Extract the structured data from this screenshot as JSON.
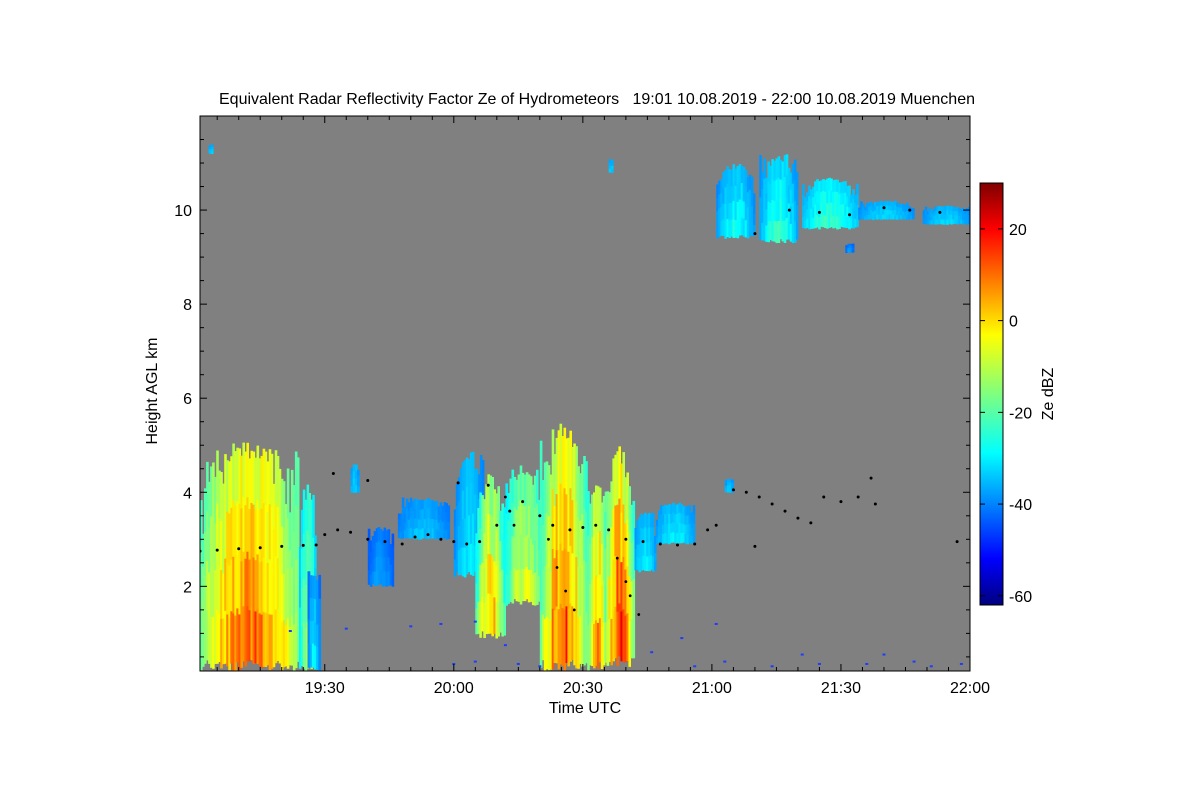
{
  "chart_data": {
    "type": "heatmap",
    "title": "Equivalent Radar Reflectivity Factor Ze of Hydrometeors   19:01 10.08.2019 - 22:00 10.08.2019 Muenchen",
    "xlabel": "Time UTC",
    "ylabel": "Height AGL km",
    "x_range_minutes": [
      1141,
      1320
    ],
    "x_ticks": [
      {
        "minute": 1170,
        "label": "19:30"
      },
      {
        "minute": 1200,
        "label": "20:00"
      },
      {
        "minute": 1230,
        "label": "20:30"
      },
      {
        "minute": 1260,
        "label": "21:00"
      },
      {
        "minute": 1290,
        "label": "21:30"
      },
      {
        "minute": 1320,
        "label": "22:00"
      }
    ],
    "ylim": [
      0.2,
      12.0
    ],
    "y_ticks": [
      2,
      4,
      6,
      8,
      10
    ],
    "background_color": "#808080",
    "colorbar": {
      "label": "Ze dBZ",
      "range": [
        -62,
        30
      ],
      "ticks": [
        -60,
        -40,
        -20,
        0,
        20
      ],
      "colormap": "jet"
    },
    "echo_regions": [
      {
        "t0": 1141,
        "t1": 1164,
        "base": 0.2,
        "top": 5.1,
        "zmax": 12,
        "zmin": -30
      },
      {
        "t0": 1164,
        "t1": 1168,
        "base": 0.2,
        "top": 4.2,
        "zmax": -10,
        "zmin": -40
      },
      {
        "t0": 1166,
        "t1": 1169,
        "base": 0.2,
        "top": 2.4,
        "zmax": -28,
        "zmin": -45
      },
      {
        "t0": 1176,
        "t1": 1178,
        "base": 4.0,
        "top": 4.6,
        "zmax": -30,
        "zmin": -40
      },
      {
        "t0": 1180,
        "t1": 1186,
        "base": 2.0,
        "top": 3.3,
        "zmax": -35,
        "zmin": -45
      },
      {
        "t0": 1187,
        "t1": 1199,
        "base": 3.0,
        "top": 3.9,
        "zmax": -32,
        "zmin": -42
      },
      {
        "t0": 1200,
        "t1": 1207,
        "base": 2.2,
        "top": 4.9,
        "zmax": -28,
        "zmin": -42
      },
      {
        "t0": 1205,
        "t1": 1212,
        "base": 0.9,
        "top": 4.4,
        "zmax": 5,
        "zmin": -40
      },
      {
        "t0": 1212,
        "t1": 1221,
        "base": 1.6,
        "top": 4.6,
        "zmax": -5,
        "zmin": -35
      },
      {
        "t0": 1220,
        "t1": 1231,
        "base": 0.2,
        "top": 5.5,
        "zmax": 15,
        "zmin": -35
      },
      {
        "t0": 1231,
        "t1": 1236,
        "base": 0.2,
        "top": 4.3,
        "zmax": 8,
        "zmin": -35
      },
      {
        "t0": 1235,
        "t1": 1242,
        "base": 0.3,
        "top": 5.0,
        "zmax": 17,
        "zmin": -35
      },
      {
        "t0": 1242,
        "t1": 1247,
        "base": 2.3,
        "top": 3.6,
        "zmax": -28,
        "zmin": -40
      },
      {
        "t0": 1247,
        "t1": 1256,
        "base": 2.9,
        "top": 3.8,
        "zmax": -28,
        "zmin": -40
      },
      {
        "t0": 1263,
        "t1": 1265,
        "base": 4.0,
        "top": 4.3,
        "zmax": -30,
        "zmin": -40
      },
      {
        "t0": 1261,
        "t1": 1270,
        "base": 9.4,
        "top": 11.0,
        "zmax": -25,
        "zmin": -42
      },
      {
        "t0": 1271,
        "t1": 1280,
        "base": 9.3,
        "top": 11.2,
        "zmax": -22,
        "zmin": -42
      },
      {
        "t0": 1281,
        "t1": 1294,
        "base": 9.6,
        "top": 10.7,
        "zmax": -22,
        "zmin": -38
      },
      {
        "t0": 1294,
        "t1": 1307,
        "base": 9.8,
        "top": 10.2,
        "zmax": -30,
        "zmin": -40
      },
      {
        "t0": 1309,
        "t1": 1320,
        "base": 9.7,
        "top": 10.1,
        "zmax": -30,
        "zmin": -40
      },
      {
        "t0": 1236,
        "t1": 1237,
        "base": 10.8,
        "top": 11.1,
        "zmax": -30,
        "zmin": -40
      },
      {
        "t0": 1143,
        "t1": 1144,
        "base": 11.2,
        "top": 11.4,
        "zmax": -30,
        "zmin": -40
      },
      {
        "t0": 1291,
        "t1": 1293,
        "base": 9.1,
        "top": 9.3,
        "zmax": -35,
        "zmin": -45
      }
    ],
    "melting_layer_points": [
      [
        1141,
        2.75
      ],
      [
        1145,
        2.77
      ],
      [
        1150,
        2.8
      ],
      [
        1155,
        2.82
      ],
      [
        1160,
        2.85
      ],
      [
        1165,
        2.87
      ],
      [
        1168,
        2.88
      ],
      [
        1170,
        3.1
      ],
      [
        1173,
        3.2
      ],
      [
        1176,
        3.15
      ],
      [
        1180,
        3.0
      ],
      [
        1184,
        2.95
      ],
      [
        1188,
        2.9
      ],
      [
        1191,
        3.05
      ],
      [
        1194,
        3.1
      ],
      [
        1197,
        3.0
      ],
      [
        1200,
        2.95
      ],
      [
        1203,
        2.9
      ],
      [
        1206,
        2.95
      ],
      [
        1210,
        3.3
      ],
      [
        1213,
        3.6
      ],
      [
        1216,
        3.8
      ],
      [
        1220,
        3.5
      ],
      [
        1223,
        3.3
      ],
      [
        1227,
        3.2
      ],
      [
        1230,
        3.25
      ],
      [
        1233,
        3.3
      ],
      [
        1236,
        3.2
      ],
      [
        1240,
        3.0
      ],
      [
        1244,
        2.95
      ],
      [
        1248,
        2.9
      ],
      [
        1252,
        2.88
      ],
      [
        1256,
        2.9
      ],
      [
        1259,
        3.2
      ],
      [
        1261,
        3.3
      ],
      [
        1265,
        4.05
      ],
      [
        1268,
        4.0
      ],
      [
        1271,
        3.9
      ],
      [
        1274,
        3.75
      ],
      [
        1277,
        3.6
      ],
      [
        1280,
        3.45
      ],
      [
        1283,
        3.35
      ],
      [
        1286,
        3.9
      ],
      [
        1290,
        3.8
      ],
      [
        1294,
        3.9
      ],
      [
        1298,
        3.75
      ],
      [
        1270,
        9.5
      ],
      [
        1278,
        10.0
      ],
      [
        1285,
        9.95
      ],
      [
        1292,
        9.9
      ],
      [
        1300,
        10.05
      ],
      [
        1306,
        10.0
      ],
      [
        1313,
        9.95
      ],
      [
        1201,
        4.2
      ],
      [
        1208,
        4.15
      ],
      [
        1172,
        4.4
      ],
      [
        1180,
        4.25
      ],
      [
        1270,
        2.85
      ],
      [
        1297,
        4.3
      ],
      [
        1317,
        2.95
      ]
    ],
    "core_streak_points": [
      [
        1222,
        3.0
      ],
      [
        1224,
        2.4
      ],
      [
        1226,
        1.9
      ],
      [
        1228,
        1.5
      ],
      [
        1238,
        2.6
      ],
      [
        1240,
        2.1
      ],
      [
        1241,
        1.8
      ],
      [
        1243,
        1.4
      ],
      [
        1212,
        3.9
      ],
      [
        1214,
        3.3
      ]
    ],
    "sparse_echo_points": [
      [
        1162,
        1.05
      ],
      [
        1175,
        1.1
      ],
      [
        1190,
        1.15
      ],
      [
        1197,
        1.2
      ],
      [
        1205,
        1.25
      ],
      [
        1212,
        0.75
      ],
      [
        1215,
        0.35
      ],
      [
        1220,
        0.3
      ],
      [
        1246,
        0.6
      ],
      [
        1253,
        0.9
      ],
      [
        1256,
        0.3
      ],
      [
        1261,
        1.2
      ],
      [
        1263,
        0.4
      ],
      [
        1274,
        0.3
      ],
      [
        1281,
        0.55
      ],
      [
        1285,
        0.35
      ],
      [
        1296,
        0.35
      ],
      [
        1300,
        0.55
      ],
      [
        1307,
        0.4
      ],
      [
        1311,
        0.3
      ],
      [
        1318,
        0.35
      ],
      [
        1200,
        0.35
      ],
      [
        1205,
        0.4
      ]
    ]
  }
}
